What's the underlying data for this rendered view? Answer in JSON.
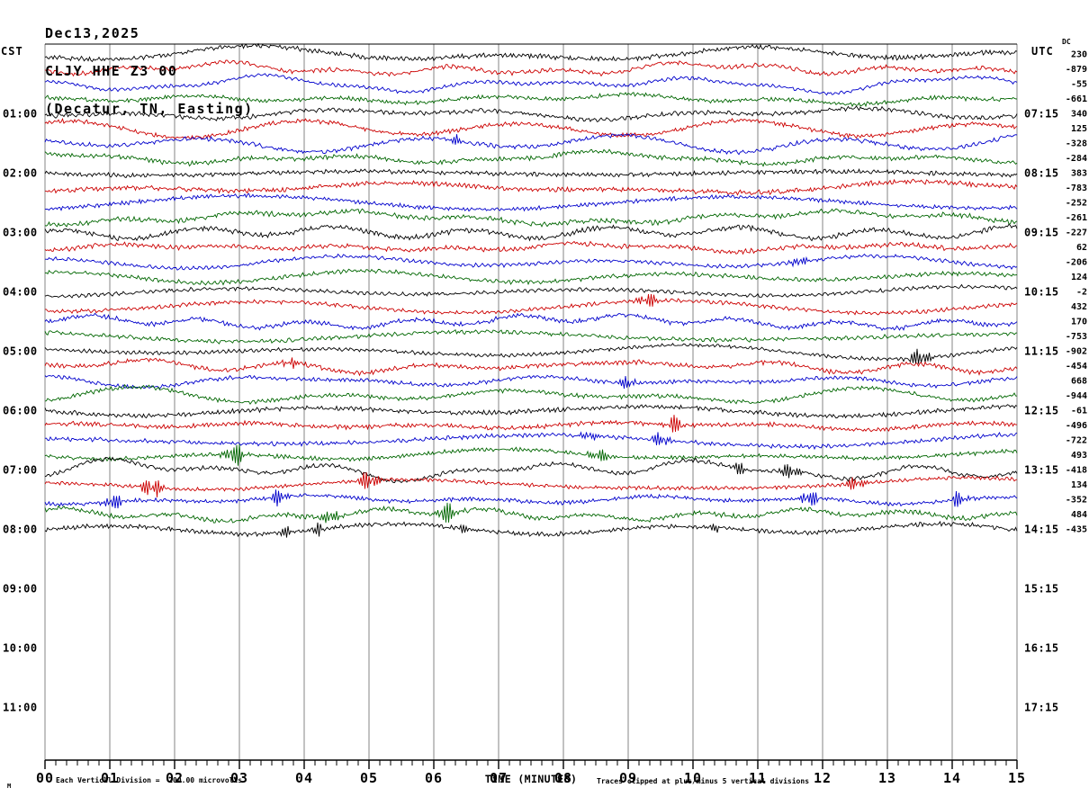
{
  "header": {
    "date": "Dec13,2025",
    "station": "CLJY HHE Z3 00",
    "location": "(Decatur, TN, Easting)"
  },
  "axes": {
    "left_title": "CST",
    "right_title": "UTC",
    "dc_title": "DC",
    "left_time_labels": [
      "01:00",
      "02:00",
      "03:00",
      "04:00",
      "05:00",
      "06:00",
      "07:00",
      "08:00",
      "09:00",
      "10:00",
      "11:00"
    ],
    "right_time_labels": [
      "07:15",
      "08:15",
      "09:15",
      "10:15",
      "11:15",
      "12:15",
      "13:15",
      "14:15",
      "15:15",
      "16:15",
      "17:15"
    ],
    "x_tick_labels": [
      "00",
      "01",
      "02",
      "03",
      "04",
      "05",
      "06",
      "07",
      "08",
      "09",
      "10",
      "11",
      "12",
      "13",
      "14",
      "15"
    ],
    "x_axis_title": "TIME (MINUTES)"
  },
  "footer": {
    "left_note": "Each Vertical Division =  200.00 microvolts",
    "right_note": "Traces clipped at plus/minus 5 vertical divisions",
    "watermark": "M"
  },
  "colors": {
    "trace_cycle": [
      "#000000",
      "#cc0000",
      "#0000cc",
      "#006600"
    ],
    "grid": "#858585",
    "axis": "#000000"
  },
  "chart_data": {
    "type": "line",
    "description": "Seismic helicorder: each horizontal row is 15 minutes of one channel, rows stacked top-to-bottom in time, colors cycle black/red/blue/green",
    "x_range_minutes": [
      0,
      15
    ],
    "minor_ticks_per_minute": 6,
    "rows_per_hour": 4,
    "data_rows": 33,
    "total_row_slots": 48,
    "first_row_cst": "00:00",
    "last_data_row_cst": "08:00",
    "clip_divisions": 5,
    "microvolts_per_division": 200,
    "dc_offsets": [
      230,
      -879,
      -55,
      -661,
      340,
      125,
      -328,
      -284,
      383,
      -783,
      -252,
      -261,
      -227,
      62,
      -206,
      124,
      -2,
      432,
      170,
      -753,
      -902,
      -454,
      668,
      -944,
      -61,
      -496,
      -722,
      493,
      -418,
      134,
      -352,
      484,
      -435
    ],
    "events": [
      {
        "row": 6,
        "min": 6.35,
        "amp": 5
      },
      {
        "row": 14,
        "min": 11.65,
        "amp": 6
      },
      {
        "row": 17,
        "min": 9.3,
        "amp": 9
      },
      {
        "row": 20,
        "min": 13.5,
        "amp": 11
      },
      {
        "row": 21,
        "min": 3.8,
        "amp": 6
      },
      {
        "row": 22,
        "min": 9.0,
        "amp": 7
      },
      {
        "row": 25,
        "min": 9.7,
        "amp": 10
      },
      {
        "row": 26,
        "min": 8.4,
        "amp": 6
      },
      {
        "row": 26,
        "min": 9.5,
        "amp": 8
      },
      {
        "row": 27,
        "min": 2.95,
        "amp": 12
      },
      {
        "row": 27,
        "min": 8.55,
        "amp": 8
      },
      {
        "row": 28,
        "min": 10.7,
        "amp": 7
      },
      {
        "row": 28,
        "min": 11.5,
        "amp": 9
      },
      {
        "row": 29,
        "min": 1.65,
        "amp": 12
      },
      {
        "row": 29,
        "min": 5.0,
        "amp": 11
      },
      {
        "row": 29,
        "min": 12.5,
        "amp": 8
      },
      {
        "row": 30,
        "min": 1.05,
        "amp": 9
      },
      {
        "row": 30,
        "min": 3.6,
        "amp": 9
      },
      {
        "row": 30,
        "min": 11.8,
        "amp": 9
      },
      {
        "row": 30,
        "min": 14.1,
        "amp": 8
      },
      {
        "row": 31,
        "min": 4.4,
        "amp": 9
      },
      {
        "row": 31,
        "min": 6.2,
        "amp": 11
      },
      {
        "row": 32,
        "min": 3.7,
        "amp": 6
      },
      {
        "row": 32,
        "min": 4.2,
        "amp": 6
      },
      {
        "row": 32,
        "min": 6.5,
        "amp": 5
      },
      {
        "row": 32,
        "min": 10.3,
        "amp": 5
      }
    ]
  }
}
